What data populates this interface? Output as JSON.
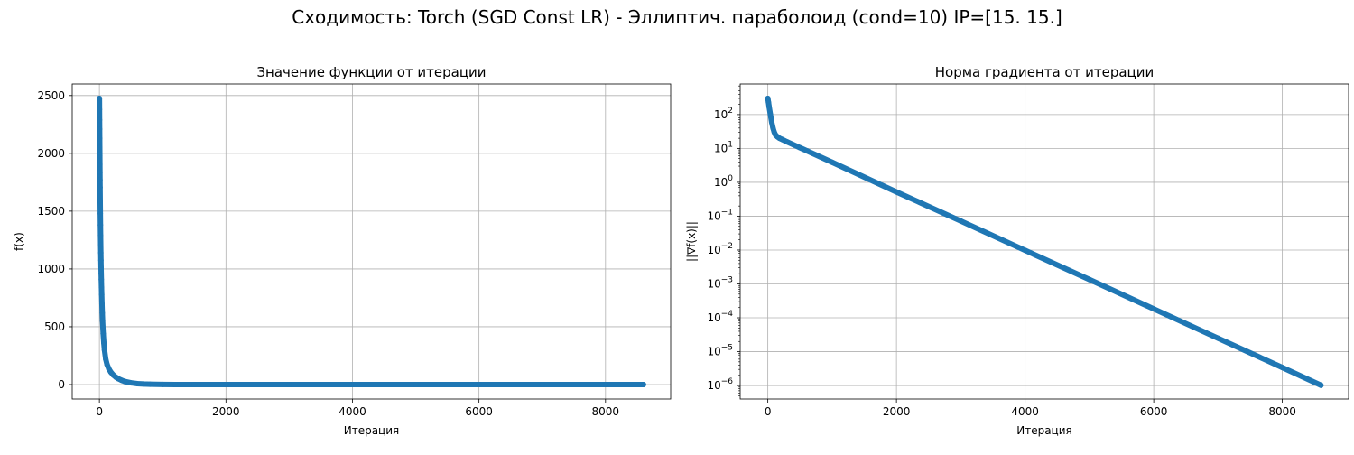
{
  "figure": {
    "suptitle": "Сходимость: Torch (SGD Const LR) - Эллиптич. параболоид (cond=10) IP=[15. 15.]"
  },
  "chart_data": [
    {
      "type": "line",
      "title": "Значение функции от итерации",
      "xlabel": "Итерация",
      "ylabel": "f(x)",
      "xlim": [
        -430,
        9030
      ],
      "ylim": [
        -125,
        2600
      ],
      "xticks": [
        0,
        2000,
        4000,
        6000,
        8000
      ],
      "yticks": [
        0,
        500,
        1000,
        1500,
        2000,
        2500
      ],
      "yscale": "linear",
      "grid": true,
      "marker": "circle",
      "color": "#1f77b4",
      "series": [
        {
          "x": [
            0,
            1,
            2,
            3,
            4,
            5,
            6,
            7,
            8,
            9,
            10,
            12,
            14,
            16,
            18,
            20,
            22,
            24,
            26,
            28,
            30,
            33,
            36,
            40,
            45,
            50,
            60,
            70,
            80,
            100,
            120,
            150,
            180,
            220,
            260,
            300,
            350,
            400,
            500,
            600,
            700,
            800,
            1000,
            1200,
            1500,
            2000,
            3000,
            4000,
            5000,
            6000,
            7000,
            8000,
            8600
          ],
          "y": [
            2475,
            2380,
            2290,
            2210,
            2130,
            2050,
            1980,
            1905,
            1835,
            1770,
            1705,
            1590,
            1480,
            1380,
            1290,
            1210,
            1140,
            1075,
            1015,
            960,
            910,
            840,
            780,
            700,
            620,
            550,
            440,
            360,
            300,
            220,
            175,
            135,
            108,
            82,
            64,
            50,
            37,
            27,
            15,
            8,
            4.5,
            2.5,
            0.8,
            0.3,
            0.06,
            0.005,
            0.0001,
            2e-06,
            0,
            0,
            0,
            0,
            0
          ]
        }
      ]
    },
    {
      "type": "line",
      "title": "Норма градиента от итерации",
      "xlabel": "Итерация",
      "ylabel": "||∇f(x)||",
      "xlim": [
        -430,
        9030
      ],
      "ylim": [
        4e-07,
        800
      ],
      "xticks": [
        0,
        2000,
        4000,
        6000,
        8000
      ],
      "yticks": [
        1e-06,
        1e-05,
        0.0001,
        0.001,
        0.01,
        0.1,
        1,
        10,
        100
      ],
      "ytick_labels": [
        {
          "base": "10",
          "exp": "−6"
        },
        {
          "base": "10",
          "exp": "−5"
        },
        {
          "base": "10",
          "exp": "−4"
        },
        {
          "base": "10",
          "exp": "−3"
        },
        {
          "base": "10",
          "exp": "−2"
        },
        {
          "base": "10",
          "exp": "−1"
        },
        {
          "base": "10",
          "exp": "0"
        },
        {
          "base": "10",
          "exp": "1"
        },
        {
          "base": "10",
          "exp": "2"
        }
      ],
      "yscale": "log",
      "grid": true,
      "marker": "circle",
      "color": "#1f77b4",
      "series": [
        {
          "x": [
            0,
            10,
            20,
            40,
            60,
            80,
            100,
            120,
            150,
            180,
            220,
            300,
            500,
            1000,
            2000,
            3000,
            4000,
            5000,
            6000,
            7000,
            8000,
            8600
          ],
          "y": [
            300,
            230,
            170,
            100,
            60,
            40,
            30,
            25,
            22,
            20,
            18.5,
            15.6,
            10.5,
            3.9,
            0.52,
            0.072,
            0.0098,
            0.00135,
            0.000183,
            2.49e-05,
            3.4e-06,
            1.02e-06
          ]
        }
      ]
    }
  ]
}
